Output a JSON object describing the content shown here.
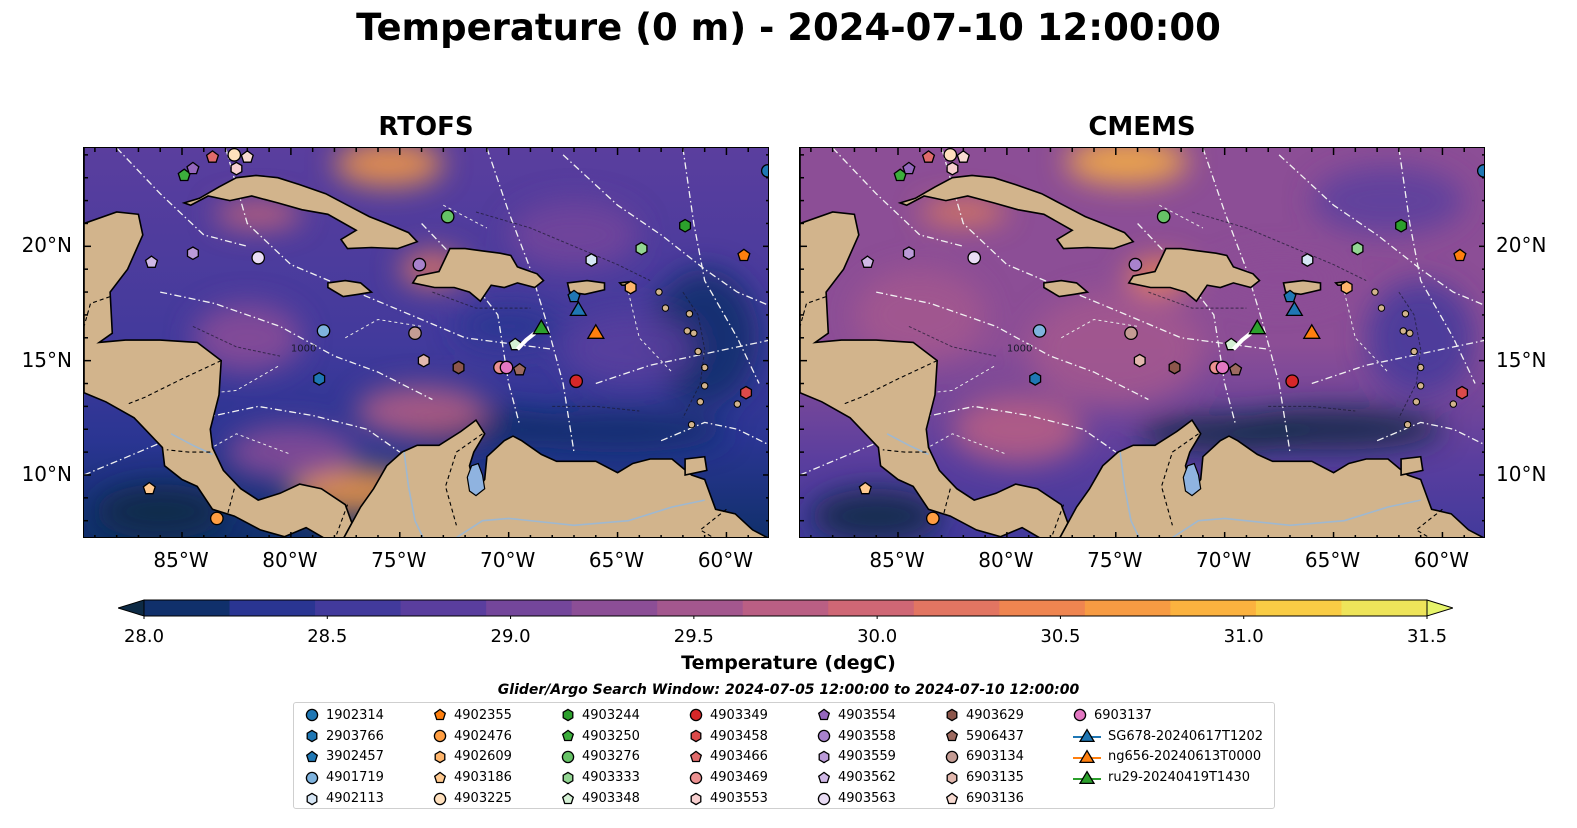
{
  "title": "Temperature (0 m) - 2024-07-10 12:00:00",
  "panels": [
    {
      "title": "RTOFS",
      "variant": "rtofs"
    },
    {
      "title": "CMEMS",
      "variant": "cmems"
    }
  ],
  "axes": {
    "lon_ticks": [
      "85°W",
      "80°W",
      "75°W",
      "70°W",
      "65°W",
      "60°W"
    ],
    "lon_values": [
      -85,
      -80,
      -75,
      -70,
      -65,
      -60
    ],
    "lat_ticks": [
      "20°N",
      "15°N",
      "10°N"
    ],
    "lat_values": [
      20,
      15,
      10
    ],
    "lon_range": [
      -89.5,
      -58.0
    ],
    "lat_range": [
      7.2,
      24.3
    ],
    "contour_label": "1000"
  },
  "colorbar": {
    "label": "Temperature (degC)",
    "ticks": [
      "28.0",
      "28.5",
      "29.0",
      "29.5",
      "30.0",
      "30.5",
      "31.0",
      "31.5"
    ],
    "tick_values": [
      28.0,
      28.5,
      29.0,
      29.5,
      30.0,
      30.5,
      31.0,
      31.5
    ],
    "range": [
      28.0,
      31.5
    ],
    "extend": "both",
    "colors": [
      "#0d2a45",
      "#10306b",
      "#2a3592",
      "#423a9c",
      "#5a3e9e",
      "#74469b",
      "#8c4e96",
      "#a3578e",
      "#ba5f84",
      "#cf6775",
      "#e27562",
      "#ef8550",
      "#f79b43",
      "#fbb23f",
      "#f9cc45",
      "#eee45a",
      "#e6f46a"
    ]
  },
  "search_window": "Glider/Argo Search Window: 2024-07-05 12:00:00 to 2024-07-10 12:00:00",
  "legend": {
    "columns": [
      [
        {
          "label": "1902314",
          "marker": "circle",
          "color": "#1f77b4"
        },
        {
          "label": "2903766",
          "marker": "hexagon",
          "color": "#1f77b4"
        },
        {
          "label": "3902457",
          "marker": "pentagon",
          "color": "#1f77b4"
        },
        {
          "label": "4901719",
          "marker": "circle",
          "color": "#7fb3de"
        },
        {
          "label": "4902113",
          "marker": "hexagon",
          "color": "#d6e6f5"
        }
      ],
      [
        {
          "label": "4902355",
          "marker": "pentagon",
          "color": "#ff7f0e"
        },
        {
          "label": "4902476",
          "marker": "circle",
          "color": "#ff9e42"
        },
        {
          "label": "4902609",
          "marker": "hexagon",
          "color": "#ffb56b"
        },
        {
          "label": "4903186",
          "marker": "pentagon",
          "color": "#ffc98f"
        },
        {
          "label": "4903225",
          "marker": "circle",
          "color": "#ffe0bd"
        }
      ],
      [
        {
          "label": "4903244",
          "marker": "hexagon",
          "color": "#2ca02c"
        },
        {
          "label": "4903250",
          "marker": "pentagon",
          "color": "#3cae3c"
        },
        {
          "label": "4903276",
          "marker": "circle",
          "color": "#66c266"
        },
        {
          "label": "4903333",
          "marker": "hexagon",
          "color": "#93d693"
        },
        {
          "label": "4903348",
          "marker": "pentagon",
          "color": "#d4f0d4"
        }
      ],
      [
        {
          "label": "4903349",
          "marker": "circle",
          "color": "#d62728"
        },
        {
          "label": "4903458",
          "marker": "hexagon",
          "color": "#dc4a4a"
        },
        {
          "label": "4903466",
          "marker": "pentagon",
          "color": "#e06b6b"
        },
        {
          "label": "4903469",
          "marker": "circle",
          "color": "#ec9191"
        },
        {
          "label": "4903553",
          "marker": "hexagon",
          "color": "#f7cfcf"
        }
      ],
      [
        {
          "label": "4903554",
          "marker": "pentagon",
          "color": "#9467bd"
        },
        {
          "label": "4903558",
          "marker": "circle",
          "color": "#a882cc"
        },
        {
          "label": "4903559",
          "marker": "hexagon",
          "color": "#bb9ad8"
        },
        {
          "label": "4903562",
          "marker": "pentagon",
          "color": "#d0b8e6"
        },
        {
          "label": "4903563",
          "marker": "circle",
          "color": "#e9dcf4"
        }
      ],
      [
        {
          "label": "4903629",
          "marker": "hexagon",
          "color": "#8c564b"
        },
        {
          "label": "5906437",
          "marker": "pentagon",
          "color": "#9d6a60"
        },
        {
          "label": "6903134",
          "marker": "circle",
          "color": "#c49c94"
        },
        {
          "label": "6903135",
          "marker": "hexagon",
          "color": "#e2b8ae"
        },
        {
          "label": "6903136",
          "marker": "pentagon",
          "color": "#f8dbd2"
        }
      ],
      [
        {
          "label": "6903137",
          "marker": "circle",
          "color": "#e377c2"
        },
        {
          "label": "SG678-20240617T1202",
          "marker": "triangle-line",
          "color": "#1f77b4"
        },
        {
          "label": "ng656-20240613T0000",
          "marker": "triangle-line",
          "color": "#ff7f0e"
        },
        {
          "label": "ru29-20240419T1430",
          "marker": "triangle-line",
          "color": "#2ca02c"
        }
      ]
    ]
  },
  "floats": [
    {
      "id": "1902314",
      "lon": -58.1,
      "lat": 23.3
    },
    {
      "id": "2903766",
      "lon": -78.7,
      "lat": 14.2
    },
    {
      "id": "3902457",
      "lon": -67.0,
      "lat": 17.8
    },
    {
      "id": "4901719",
      "lon": -78.5,
      "lat": 16.3
    },
    {
      "id": "4902113",
      "lon": -66.2,
      "lat": 19.4
    },
    {
      "id": "4902355",
      "lon": -59.2,
      "lat": 19.6
    },
    {
      "id": "4902476",
      "lon": -83.4,
      "lat": 8.1
    },
    {
      "id": "4902609",
      "lon": -64.4,
      "lat": 18.2
    },
    {
      "id": "4903186",
      "lon": -86.5,
      "lat": 9.4
    },
    {
      "id": "4903225",
      "lon": -82.6,
      "lat": 24.0
    },
    {
      "id": "4903244",
      "lon": -61.9,
      "lat": 20.9
    },
    {
      "id": "4903250",
      "lon": -84.9,
      "lat": 23.1
    },
    {
      "id": "4903276",
      "lon": -72.8,
      "lat": 21.3
    },
    {
      "id": "4903333",
      "lon": -63.9,
      "lat": 19.9
    },
    {
      "id": "4903348",
      "lon": -69.7,
      "lat": 15.7
    },
    {
      "id": "4903349",
      "lon": -66.9,
      "lat": 14.1
    },
    {
      "id": "4903458",
      "lon": -59.1,
      "lat": 13.6
    },
    {
      "id": "4903466",
      "lon": -83.6,
      "lat": 23.9
    },
    {
      "id": "4903469",
      "lon": -70.4,
      "lat": 14.7
    },
    {
      "id": "4903553",
      "lon": -82.5,
      "lat": 23.4
    },
    {
      "id": "4903554",
      "lon": -84.5,
      "lat": 23.4
    },
    {
      "id": "4903558",
      "lon": -74.1,
      "lat": 19.2
    },
    {
      "id": "4903559",
      "lon": -84.5,
      "lat": 19.7
    },
    {
      "id": "4903562",
      "lon": -86.4,
      "lat": 19.3
    },
    {
      "id": "4903563",
      "lon": -81.5,
      "lat": 19.5
    },
    {
      "id": "4903629",
      "lon": -72.3,
      "lat": 14.7
    },
    {
      "id": "5906437",
      "lon": -69.5,
      "lat": 14.6
    },
    {
      "id": "6903134",
      "lon": -74.3,
      "lat": 16.2
    },
    {
      "id": "6903135",
      "lon": -73.9,
      "lat": 15.0
    },
    {
      "id": "6903136",
      "lon": -82.0,
      "lat": 23.9
    },
    {
      "id": "6903137",
      "lon": -70.1,
      "lat": 14.7
    }
  ],
  "gliders": [
    {
      "id": "SG678-20240617T1202",
      "lon": -66.8,
      "lat": 17.2
    },
    {
      "id": "ng656-20240613T0000",
      "lon": -66.0,
      "lat": 16.2
    },
    {
      "id": "ru29-20240419T1430",
      "lon": -68.5,
      "lat": 16.4
    }
  ]
}
